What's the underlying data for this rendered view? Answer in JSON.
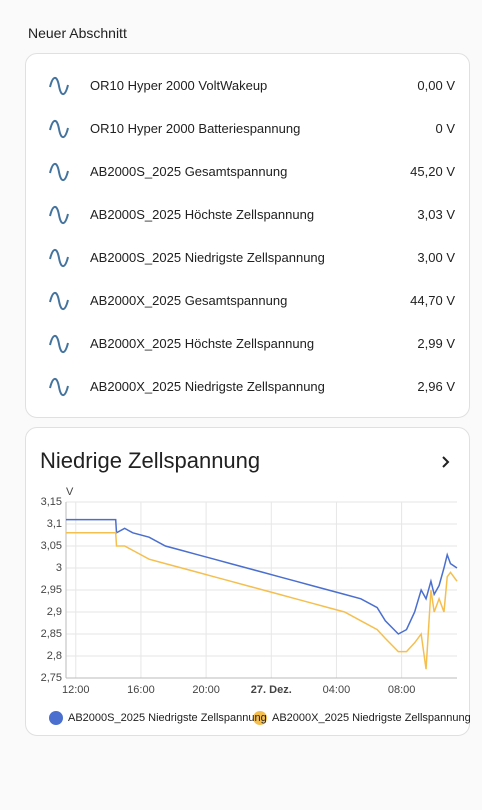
{
  "section_title": "Neuer Abschnitt",
  "entities": [
    {
      "name": "OR10 Hyper 2000 VoltWakeup",
      "state": "0,00 V"
    },
    {
      "name": "OR10 Hyper 2000 Batteriespannung",
      "state": "0 V"
    },
    {
      "name": "AB2000S_2025 Gesamtspannung",
      "state": "45,20 V"
    },
    {
      "name": "AB2000S_2025 Höchste Zellspannung",
      "state": "3,03 V"
    },
    {
      "name": "AB2000S_2025 Niedrigste Zellspannung",
      "state": "3,00 V"
    },
    {
      "name": "AB2000X_2025 Gesamtspannung",
      "state": "44,70 V"
    },
    {
      "name": "AB2000X_2025 Höchste Zellspannung",
      "state": "2,99 V"
    },
    {
      "name": "AB2000X_2025 Niedrigste Zellspannung",
      "state": "2,96 V"
    }
  ],
  "chart_data": {
    "type": "line",
    "title": "Niedrige Zellspannung",
    "y_label": "V",
    "x": [
      11.4,
      14.45,
      14.5,
      15.0,
      15.5,
      16.5,
      17.5,
      18.5,
      19.5,
      20.5,
      21.5,
      22.5,
      23.5,
      24.5,
      25.5,
      26.5,
      27.5,
      28.5,
      29.5,
      30.5,
      31.0,
      31.8,
      32.3,
      32.8,
      33.2,
      33.5,
      33.8,
      34.0,
      34.3,
      34.6,
      34.8,
      35.0,
      35.4
    ],
    "series": [
      {
        "name": "AB2000S_2025 Niedrigste Zellspannung",
        "color": "#4a6fcf",
        "values": [
          3.11,
          3.11,
          3.08,
          3.09,
          3.08,
          3.07,
          3.05,
          3.04,
          3.03,
          3.02,
          3.01,
          3.0,
          2.99,
          2.98,
          2.97,
          2.96,
          2.95,
          2.94,
          2.93,
          2.91,
          2.88,
          2.85,
          2.86,
          2.9,
          2.95,
          2.93,
          2.97,
          2.94,
          2.96,
          3.0,
          3.03,
          3.01,
          3.0
        ]
      },
      {
        "name": "AB2000X_2025 Niedrigste Zellspannung",
        "color": "#f5bf4f",
        "values": [
          3.08,
          3.08,
          3.05,
          3.05,
          3.04,
          3.02,
          3.01,
          3.0,
          2.99,
          2.98,
          2.97,
          2.96,
          2.95,
          2.94,
          2.93,
          2.92,
          2.91,
          2.9,
          2.88,
          2.86,
          2.84,
          2.81,
          2.81,
          2.83,
          2.85,
          2.77,
          2.95,
          2.9,
          2.93,
          2.9,
          2.98,
          2.99,
          2.97
        ]
      }
    ],
    "xlim": [
      11.4,
      35.4
    ],
    "xticks": [
      {
        "value": 12,
        "label": "12:00"
      },
      {
        "value": 16,
        "label": "16:00"
      },
      {
        "value": 20,
        "label": "20:00"
      },
      {
        "value": 24,
        "label": "27. Dez."
      },
      {
        "value": 28,
        "label": "04:00"
      },
      {
        "value": 32,
        "label": "08:00"
      }
    ],
    "ylim": [
      2.75,
      3.15
    ],
    "yticks": [
      {
        "value": 2.75,
        "label": "2,75"
      },
      {
        "value": 2.8,
        "label": "2,8"
      },
      {
        "value": 2.85,
        "label": "2,85"
      },
      {
        "value": 2.9,
        "label": "2,9"
      },
      {
        "value": 2.95,
        "label": "2,95"
      },
      3,
      {
        "value": 3.05,
        "label": "3,05"
      },
      {
        "value": 3.1,
        "label": "3,1"
      },
      {
        "value": 3.15,
        "label": "3,15"
      }
    ],
    "grid": true,
    "legend": "bottom"
  }
}
